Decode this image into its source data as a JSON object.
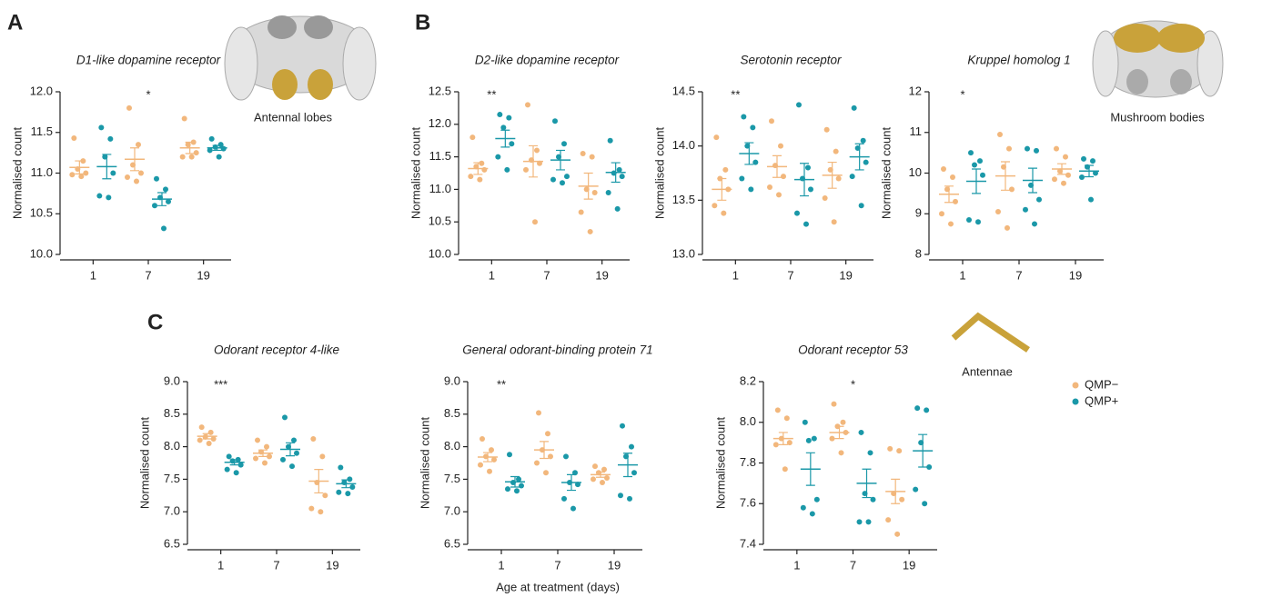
{
  "panel_labels": [
    "A",
    "B",
    "C"
  ],
  "region_labels": [
    "Antennal lobes",
    "Mushroom bodies",
    "Antennae"
  ],
  "x_label": "Age at treatment (days)",
  "chart_data": [
    {
      "type": "dot",
      "title": "D1-like dopamine receptor",
      "y_label": "Normalised count",
      "categories": [
        "1",
        "7",
        "19"
      ],
      "ylim": [
        10,
        12
      ],
      "yticks": [
        {
          "value": 10,
          "label": "10.0"
        },
        10.5,
        {
          "value": 11,
          "label": "11.0"
        },
        11.5,
        {
          "value": 12,
          "label": "12.0"
        }
      ],
      "annotations": [
        {
          "text": "*",
          "category": "7"
        }
      ],
      "series": [
        {
          "name": "QMP−",
          "color": "#f2b77c",
          "points": [
            [
              11.43,
              11.15,
              11.05,
              11.0,
              10.98,
              10.96
            ],
            [
              11.8,
              11.35,
              11.1,
              11.0,
              10.95,
              10.9
            ],
            [
              11.67,
              11.38,
              11.35,
              11.25,
              11.2,
              11.2
            ]
          ],
          "mean": [
            11.07,
            11.17,
            11.31
          ],
          "sem": [
            0.08,
            0.14,
            0.07
          ]
        },
        {
          "name": "QMP+",
          "color": "#1a98a8",
          "points": [
            [
              11.56,
              11.42,
              11.2,
              11.0,
              10.72,
              10.7
            ],
            [
              10.93,
              10.8,
              10.7,
              10.65,
              10.6,
              10.32
            ],
            [
              11.42,
              11.35,
              11.32,
              11.3,
              11.28,
              11.2
            ]
          ],
          "mean": [
            11.08,
            10.68,
            11.31
          ],
          "sem": [
            0.15,
            0.08,
            0.03
          ]
        }
      ]
    },
    {
      "type": "dot",
      "title": "D2-like dopamine receptor",
      "y_label": "Normalised count",
      "categories": [
        "1",
        "7",
        "19"
      ],
      "ylim": [
        10,
        12.5
      ],
      "yticks": [
        {
          "value": 10,
          "label": "10.0"
        },
        10.5,
        {
          "value": 11,
          "label": "11.0"
        },
        11.5,
        {
          "value": 12,
          "label": "12.0"
        },
        12.5
      ],
      "annotations": [
        {
          "text": "**",
          "category": "1"
        }
      ],
      "series": [
        {
          "name": "QMP−",
          "color": "#f2b77c",
          "points": [
            [
              11.8,
              11.4,
              11.35,
              11.3,
              11.2,
              11.15
            ],
            [
              12.3,
              11.6,
              11.45,
              11.4,
              11.3,
              10.5
            ],
            [
              11.55,
              11.5,
              11.0,
              10.95,
              10.65,
              10.35
            ]
          ],
          "mean": [
            11.32,
            11.43,
            11.05
          ],
          "sem": [
            0.09,
            0.24,
            0.2
          ]
        },
        {
          "name": "QMP+",
          "color": "#1a98a8",
          "points": [
            [
              12.15,
              12.1,
              11.95,
              11.7,
              11.5,
              11.3
            ],
            [
              12.05,
              11.7,
              11.5,
              11.2,
              11.15,
              11.1
            ],
            [
              11.75,
              11.3,
              11.25,
              11.2,
              10.95,
              10.7
            ]
          ],
          "mean": [
            11.78,
            11.45,
            11.26
          ],
          "sem": [
            0.13,
            0.15,
            0.15
          ]
        }
      ]
    },
    {
      "type": "dot",
      "title": "Serotonin receptor",
      "y_label": "Normalised count",
      "categories": [
        "1",
        "7",
        "19"
      ],
      "ylim": [
        13,
        14.5
      ],
      "yticks": [
        {
          "value": 13,
          "label": "13.0"
        },
        13.5,
        {
          "value": 14,
          "label": "14.0"
        },
        14.5
      ],
      "annotations": [
        {
          "text": "**",
          "category": "1"
        }
      ],
      "series": [
        {
          "name": "QMP−",
          "color": "#f2b77c",
          "points": [
            [
              14.08,
              13.78,
              13.7,
              13.6,
              13.45,
              13.38
            ],
            [
              14.23,
              14.0,
              13.82,
              13.72,
              13.62,
              13.55
            ],
            [
              14.15,
              13.95,
              13.78,
              13.7,
              13.52,
              13.3
            ]
          ],
          "mean": [
            13.6,
            13.81,
            13.73
          ],
          "sem": [
            0.1,
            0.1,
            0.12
          ]
        },
        {
          "name": "QMP+",
          "color": "#1a98a8",
          "points": [
            [
              14.27,
              14.17,
              14.0,
              13.85,
              13.7,
              13.6
            ],
            [
              14.38,
              13.8,
              13.7,
              13.6,
              13.38,
              13.28
            ],
            [
              14.35,
              14.05,
              13.98,
              13.85,
              13.72,
              13.45
            ]
          ],
          "mean": [
            13.93,
            13.69,
            13.9
          ],
          "sem": [
            0.1,
            0.15,
            0.12
          ]
        }
      ]
    },
    {
      "type": "dot",
      "title": "Kruppel homolog 1",
      "y_label": "Normalised count",
      "categories": [
        "1",
        "7",
        "19"
      ],
      "ylim": [
        8,
        12
      ],
      "yticks": [
        8,
        9,
        10,
        11,
        12
      ],
      "annotations": [
        {
          "text": "*",
          "category": "1"
        }
      ],
      "series": [
        {
          "name": "QMP−",
          "color": "#f2b77c",
          "points": [
            [
              10.1,
              9.9,
              9.6,
              9.3,
              9.0,
              8.75
            ],
            [
              10.95,
              10.6,
              10.15,
              9.6,
              9.05,
              8.65
            ],
            [
              10.6,
              10.4,
              10.05,
              9.95,
              9.85,
              9.75
            ]
          ],
          "mean": [
            9.48,
            9.93,
            10.1
          ],
          "sem": [
            0.2,
            0.35,
            0.13
          ]
        },
        {
          "name": "QMP+",
          "color": "#1a98a8",
          "points": [
            [
              10.5,
              10.3,
              10.2,
              9.95,
              8.85,
              8.8
            ],
            [
              10.6,
              10.55,
              9.7,
              9.35,
              9.1,
              8.75
            ],
            [
              10.35,
              10.3,
              10.15,
              10.0,
              9.9,
              9.35
            ]
          ],
          "mean": [
            9.8,
            9.82,
            10.05
          ],
          "sem": [
            0.3,
            0.3,
            0.14
          ]
        }
      ]
    },
    {
      "type": "dot",
      "title": "Odorant receptor 4-like",
      "y_label": "Normalised count",
      "categories": [
        "1",
        "7",
        "19"
      ],
      "ylim": [
        6.5,
        9
      ],
      "yticks": [
        6.5,
        {
          "value": 7,
          "label": "7.0"
        },
        7.5,
        {
          "value": 8,
          "label": "8.0"
        },
        8.5,
        {
          "value": 9,
          "label": "9.0"
        }
      ],
      "annotations": [
        {
          "text": "***",
          "category": "1"
        }
      ],
      "series": [
        {
          "name": "QMP−",
          "color": "#f2b77c",
          "points": [
            [
              8.3,
              8.22,
              8.15,
              8.12,
              8.1,
              8.05
            ],
            [
              8.1,
              8.0,
              7.92,
              7.85,
              7.82,
              7.75
            ],
            [
              8.12,
              7.85,
              7.45,
              7.25,
              7.05,
              7.0
            ]
          ],
          "mean": [
            8.16,
            7.9,
            7.47
          ],
          "sem": [
            0.04,
            0.05,
            0.18
          ]
        },
        {
          "name": "QMP+",
          "color": "#1a98a8",
          "points": [
            [
              7.85,
              7.8,
              7.78,
              7.72,
              7.65,
              7.6
            ],
            [
              8.45,
              8.1,
              8.0,
              7.9,
              7.8,
              7.7
            ],
            [
              7.68,
              7.5,
              7.45,
              7.38,
              7.3,
              7.28
            ]
          ],
          "mean": [
            7.76,
            7.96,
            7.43
          ],
          "sem": [
            0.04,
            0.1,
            0.06
          ]
        }
      ]
    },
    {
      "type": "dot",
      "title": "General odorant-binding protein 71",
      "y_label": "Normalised count",
      "categories": [
        "1",
        "7",
        "19"
      ],
      "ylim": [
        6.5,
        9
      ],
      "yticks": [
        6.5,
        {
          "value": 7,
          "label": "7.0"
        },
        7.5,
        {
          "value": 8,
          "label": "8.0"
        },
        8.5,
        {
          "value": 9,
          "label": "9.0"
        }
      ],
      "annotations": [
        {
          "text": "**",
          "category": "1"
        }
      ],
      "series": [
        {
          "name": "QMP−",
          "color": "#f2b77c",
          "points": [
            [
              8.12,
              7.95,
              7.85,
              7.8,
              7.72,
              7.62
            ],
            [
              8.52,
              8.2,
              7.95,
              7.85,
              7.75,
              7.6
            ],
            [
              7.7,
              7.65,
              7.6,
              7.52,
              7.5,
              7.45
            ]
          ],
          "mean": [
            7.84,
            7.95,
            7.57
          ],
          "sem": [
            0.07,
            0.13,
            0.04
          ]
        },
        {
          "name": "QMP+",
          "color": "#1a98a8",
          "points": [
            [
              7.88,
              7.5,
              7.45,
              7.4,
              7.35,
              7.32
            ],
            [
              7.85,
              7.6,
              7.45,
              7.42,
              7.2,
              7.05
            ],
            [
              8.32,
              8.0,
              7.85,
              7.6,
              7.25,
              7.2
            ]
          ],
          "mean": [
            7.46,
            7.45,
            7.72
          ],
          "sem": [
            0.08,
            0.12,
            0.18
          ]
        }
      ]
    },
    {
      "type": "dot",
      "title": "Odorant receptor 53",
      "y_label": "Normalised count",
      "categories": [
        "1",
        "7",
        "19"
      ],
      "ylim": [
        7.4,
        8.2
      ],
      "yticks": [
        7.4,
        7.6,
        7.8,
        {
          "value": 8,
          "label": "8.0"
        },
        8.2
      ],
      "annotations": [
        {
          "text": "*",
          "category": "7"
        }
      ],
      "series": [
        {
          "name": "QMP−",
          "color": "#f2b77c",
          "points": [
            [
              8.06,
              8.02,
              7.92,
              7.9,
              7.89,
              7.77
            ],
            [
              8.09,
              8.0,
              7.98,
              7.95,
              7.92,
              7.85
            ],
            [
              7.87,
              7.86,
              7.65,
              7.62,
              7.52,
              7.45
            ]
          ],
          "mean": [
            7.92,
            7.95,
            7.66
          ],
          "sem": [
            0.03,
            0.03,
            0.06
          ]
        },
        {
          "name": "QMP+",
          "color": "#1a98a8",
          "points": [
            [
              8.0,
              7.92,
              7.91,
              7.62,
              7.58,
              7.55
            ],
            [
              7.95,
              7.85,
              7.65,
              7.62,
              7.51,
              7.51
            ],
            [
              8.07,
              8.06,
              7.9,
              7.78,
              7.67,
              7.6
            ]
          ],
          "mean": [
            7.77,
            7.7,
            7.86
          ],
          "sem": [
            0.08,
            0.07,
            0.08
          ]
        }
      ]
    }
  ]
}
